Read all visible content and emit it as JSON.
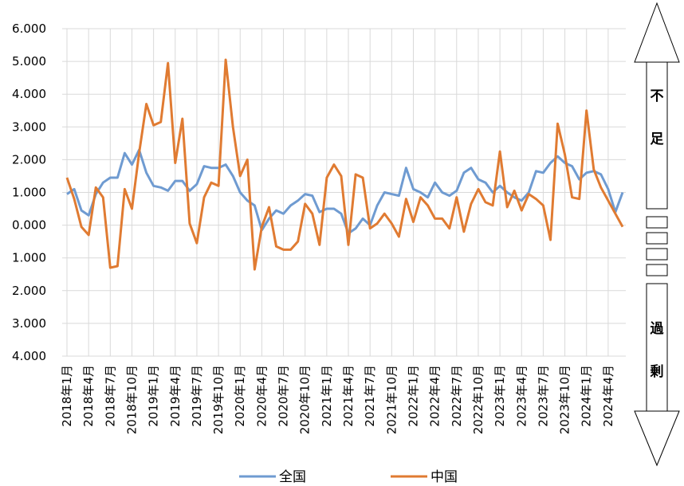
{
  "chart_data": {
    "type": "line",
    "ylim": [
      -4,
      6
    ],
    "y_ticks": [
      {
        "value": 6,
        "label": "6.000"
      },
      {
        "value": 5,
        "label": "5.000"
      },
      {
        "value": 4,
        "label": "4.000"
      },
      {
        "value": 3,
        "label": "3.000"
      },
      {
        "value": 2,
        "label": "2.000"
      },
      {
        "value": 1,
        "label": "1.000"
      },
      {
        "value": 0,
        "label": "0.000"
      },
      {
        "value": -1,
        "label": "1.000"
      },
      {
        "value": -2,
        "label": "2.000"
      },
      {
        "value": -3,
        "label": "3.000"
      },
      {
        "value": -4,
        "label": "4.000"
      }
    ],
    "x_tick_labels": [
      "2018年1月",
      "2018年4月",
      "2018年7月",
      "2018年10月",
      "2019年1月",
      "2019年4月",
      "2019年7月",
      "2019年10月",
      "2020年1月",
      "2020年4月",
      "2020年7月",
      "2020年10月",
      "2021年1月",
      "2021年4月",
      "2021年7月",
      "2021年10月",
      "2022年1月",
      "2022年4月",
      "2022年7月",
      "2022年10月",
      "2023年1月",
      "2023年4月",
      "2023年7月",
      "2023年10月",
      "2024年1月",
      "2024年4月"
    ],
    "grid": true,
    "legend_position": "bottom",
    "series": [
      {
        "name": "全国",
        "color": "#6f9bd1",
        "values": [
          0.95,
          1.1,
          0.45,
          0.3,
          0.95,
          1.3,
          1.45,
          1.45,
          2.2,
          1.85,
          2.3,
          1.6,
          1.2,
          1.15,
          1.05,
          1.35,
          1.35,
          1.05,
          1.25,
          1.8,
          1.75,
          1.75,
          1.85,
          1.5,
          1.0,
          0.75,
          0.6,
          -0.15,
          0.2,
          0.45,
          0.35,
          0.6,
          0.75,
          0.95,
          0.9,
          0.4,
          0.5,
          0.5,
          0.35,
          -0.25,
          -0.1,
          0.2,
          0.0,
          0.6,
          1.0,
          0.95,
          0.9,
          1.75,
          1.1,
          1.0,
          0.85,
          1.3,
          1.0,
          0.9,
          1.05,
          1.6,
          1.75,
          1.4,
          1.3,
          1.0,
          1.2,
          1.0,
          0.85,
          0.75,
          1.0,
          1.65,
          1.6,
          1.9,
          2.1,
          1.9,
          1.8,
          1.4,
          1.6,
          1.65,
          1.55,
          1.1,
          0.4,
          1.0
        ]
      },
      {
        "name": "中国",
        "color": "#e07b32",
        "values": [
          1.45,
          0.8,
          -0.05,
          -0.3,
          1.15,
          0.85,
          -1.3,
          -1.25,
          1.1,
          0.5,
          2.2,
          3.7,
          3.05,
          3.15,
          4.95,
          1.9,
          3.25,
          0.05,
          -0.55,
          0.85,
          1.3,
          1.2,
          5.05,
          3.0,
          1.5,
          2.0,
          -1.35,
          -0.05,
          0.55,
          -0.65,
          -0.75,
          -0.75,
          -0.5,
          0.65,
          0.35,
          -0.6,
          1.45,
          1.85,
          1.5,
          -0.6,
          1.55,
          1.45,
          -0.1,
          0.05,
          0.35,
          0.05,
          -0.35,
          0.8,
          0.1,
          0.85,
          0.6,
          0.2,
          0.2,
          -0.1,
          0.85,
          -0.2,
          0.65,
          1.1,
          0.7,
          0.6,
          2.25,
          0.55,
          1.05,
          0.45,
          0.95,
          0.8,
          0.6,
          -0.45,
          3.1,
          2.15,
          0.85,
          0.8,
          3.5,
          1.7,
          1.15,
          0.75,
          0.35,
          -0.05
        ]
      }
    ]
  },
  "arrow": {
    "top_label_1": "不",
    "top_label_2": "足",
    "bottom_label_1": "過",
    "bottom_label_2": "剰"
  }
}
